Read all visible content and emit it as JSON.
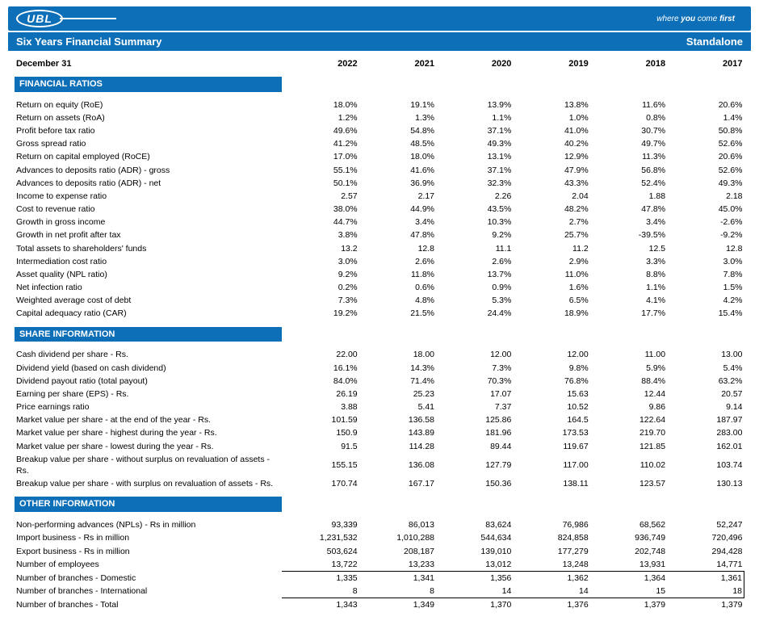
{
  "brand": {
    "logo_text": "UBL",
    "tagline_prefix": "where ",
    "tagline_em": "you",
    "tagline_suffix": " come ",
    "tagline_last": "first"
  },
  "title": {
    "left": "Six Years Financial Summary",
    "right": "Standalone"
  },
  "header": {
    "label": "December 31",
    "years": [
      "2022",
      "2021",
      "2020",
      "2019",
      "2018",
      "2017"
    ]
  },
  "sections": [
    {
      "name": "FINANCIAL RATIOS",
      "rows": [
        {
          "label": "Return on equity (RoE)",
          "v": [
            "18.0%",
            "19.1%",
            "13.9%",
            "13.8%",
            "11.6%",
            "20.6%"
          ]
        },
        {
          "label": "Return on assets (RoA)",
          "v": [
            "1.2%",
            "1.3%",
            "1.1%",
            "1.0%",
            "0.8%",
            "1.4%"
          ]
        },
        {
          "label": "Profit before tax ratio",
          "v": [
            "49.6%",
            "54.8%",
            "37.1%",
            "41.0%",
            "30.7%",
            "50.8%"
          ]
        },
        {
          "label": "Gross spread ratio",
          "v": [
            "41.2%",
            "48.5%",
            "49.3%",
            "40.2%",
            "49.7%",
            "52.6%"
          ]
        },
        {
          "label": "Return on capital employed (RoCE)",
          "v": [
            "17.0%",
            "18.0%",
            "13.1%",
            "12.9%",
            "11.3%",
            "20.6%"
          ]
        },
        {
          "label": "Advances to deposits ratio (ADR) - gross",
          "v": [
            "55.1%",
            "41.6%",
            "37.1%",
            "47.9%",
            "56.8%",
            "52.6%"
          ]
        },
        {
          "label": "Advances to deposits ratio (ADR) - net",
          "v": [
            "50.1%",
            "36.9%",
            "32.3%",
            "43.3%",
            "52.4%",
            "49.3%"
          ]
        },
        {
          "label": "Income to expense ratio",
          "v": [
            "2.57",
            "2.17",
            "2.26",
            "2.04",
            "1.88",
            "2.18"
          ]
        },
        {
          "label": "Cost to revenue ratio",
          "v": [
            "38.0%",
            "44.9%",
            "43.5%",
            "48.2%",
            "47.8%",
            "45.0%"
          ]
        },
        {
          "label": "Growth in gross income",
          "v": [
            "44.7%",
            "3.4%",
            "10.3%",
            "2.7%",
            "3.4%",
            "-2.6%"
          ]
        },
        {
          "label": "Growth in net profit after tax",
          "v": [
            "3.8%",
            "47.8%",
            "9.2%",
            "25.7%",
            "-39.5%",
            "-9.2%"
          ]
        },
        {
          "label": "Total assets to shareholders' funds",
          "v": [
            "13.2",
            "12.8",
            "11.1",
            "11.2",
            "12.5",
            "12.8"
          ]
        },
        {
          "label": "Intermediation cost ratio",
          "v": [
            "3.0%",
            "2.6%",
            "2.6%",
            "2.9%",
            "3.3%",
            "3.0%"
          ]
        },
        {
          "label": "Asset quality (NPL ratio)",
          "v": [
            "9.2%",
            "11.8%",
            "13.7%",
            "11.0%",
            "8.8%",
            "7.8%"
          ]
        },
        {
          "label": "Net infection ratio",
          "v": [
            "0.2%",
            "0.6%",
            "0.9%",
            "1.6%",
            "1.1%",
            "1.5%"
          ]
        },
        {
          "label": "Weighted average cost of debt",
          "v": [
            "7.3%",
            "4.8%",
            "5.3%",
            "6.5%",
            "4.1%",
            "4.2%"
          ]
        },
        {
          "label": "Capital adequacy ratio (CAR)",
          "v": [
            "19.2%",
            "21.5%",
            "24.4%",
            "18.9%",
            "17.7%",
            "15.4%"
          ]
        }
      ]
    },
    {
      "name": "SHARE INFORMATION",
      "rows": [
        {
          "label": "Cash dividend per share - Rs.",
          "v": [
            "22.00",
            "18.00",
            "12.00",
            "12.00",
            "11.00",
            "13.00"
          ]
        },
        {
          "label": "Dividend yield (based on cash dividend)",
          "v": [
            "16.1%",
            "14.3%",
            "7.3%",
            "9.8%",
            "5.9%",
            "5.4%"
          ]
        },
        {
          "label": "Dividend payout ratio (total payout)",
          "v": [
            "84.0%",
            "71.4%",
            "70.3%",
            "76.8%",
            "88.4%",
            "63.2%"
          ]
        },
        {
          "label": "Earning per share (EPS) - Rs.",
          "v": [
            "26.19",
            "25.23",
            "17.07",
            "15.63",
            "12.44",
            "20.57"
          ]
        },
        {
          "label": "Price earnings ratio",
          "v": [
            "3.88",
            "5.41",
            "7.37",
            "10.52",
            "9.86",
            "9.14"
          ]
        },
        {
          "label": "Market value per share - at the end of the year - Rs.",
          "v": [
            "101.59",
            "136.58",
            "125.86",
            "164.5",
            "122.64",
            "187.97"
          ]
        },
        {
          "label": "Market value per share - highest during the year - Rs.",
          "v": [
            "150.9",
            "143.89",
            "181.96",
            "173.53",
            "219.70",
            "283.00"
          ]
        },
        {
          "label": "Market value per share -  lowest during the year - Rs.",
          "v": [
            "91.5",
            "114.28",
            "89.44",
            "119.67",
            "121.85",
            "162.01"
          ]
        },
        {
          "label": "Breakup value per share - without surplus on revaluation of assets  - Rs.",
          "v": [
            "155.15",
            "136.08",
            "127.79",
            "117.00",
            "110.02",
            "103.74"
          ]
        },
        {
          "label": "Breakup value per share - with surplus on revaluation of assets - Rs.",
          "v": [
            "170.74",
            "167.17",
            "150.36",
            "138.11",
            "123.57",
            "130.13"
          ]
        }
      ]
    },
    {
      "name": "OTHER INFORMATION",
      "rows": [
        {
          "label": "Non-performing advances (NPLs) - Rs in million",
          "v": [
            "93,339",
            "86,013",
            "83,624",
            "76,986",
            "68,562",
            "52,247"
          ]
        },
        {
          "label": "Import business - Rs in million",
          "v": [
            "1,231,532",
            "1,010,288",
            "544,634",
            "824,858",
            "936,749",
            "720,496"
          ]
        },
        {
          "label": "Export business - Rs in million",
          "v": [
            "503,624",
            "208,187",
            "139,010",
            "177,279",
            "202,748",
            "294,428"
          ]
        },
        {
          "label": "Number of employees",
          "v": [
            "13,722",
            "13,233",
            "13,012",
            "13,248",
            "13,931",
            "14,771"
          ]
        },
        {
          "label": "Number of branches - Domestic",
          "box": "top",
          "v": [
            "1,335",
            "1,341",
            "1,356",
            "1,362",
            "1,364",
            "1,361"
          ]
        },
        {
          "label": "Number of branches - International",
          "box": "bot",
          "v": [
            "8",
            "8",
            "14",
            "14",
            "15",
            "18"
          ]
        },
        {
          "label": "Number of branches - Total",
          "v": [
            "1,343",
            "1,349",
            "1,370",
            "1,376",
            "1,379",
            "1,379"
          ]
        }
      ]
    }
  ]
}
